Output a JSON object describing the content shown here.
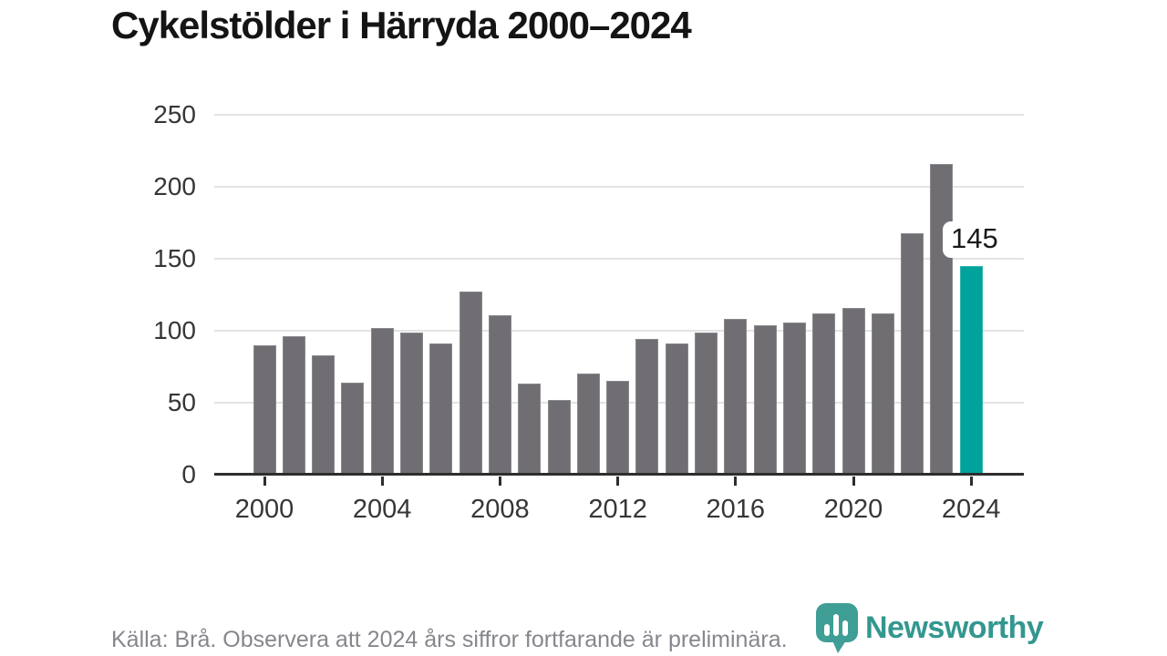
{
  "title": "Cykelstölder i Härryda 2000–2024",
  "footer": {
    "source_note": "Källa: Brå. Observera att 2024 års siffror fortfarande är preliminära."
  },
  "branding": {
    "logo_text": "Newsworthy",
    "logo_icon": "bar-chart-speech-bubble-icon"
  },
  "colors": {
    "bar": "#706e73",
    "highlight": "#00a39c",
    "grid": "#e3e3e3",
    "axis": "#2d2d2d",
    "title_text": "#141414",
    "tick_text": "#363636",
    "footer_text": "#85878c",
    "brand_teal": "#33978f"
  },
  "chart_data": {
    "type": "bar",
    "title": "Cykelstölder i Härryda 2000–2024",
    "xlabel": "",
    "ylabel": "",
    "x": [
      2000,
      2001,
      2002,
      2003,
      2004,
      2005,
      2006,
      2007,
      2008,
      2009,
      2010,
      2011,
      2012,
      2013,
      2014,
      2015,
      2016,
      2017,
      2018,
      2019,
      2020,
      2021,
      2022,
      2023,
      2024
    ],
    "values": [
      90,
      96,
      83,
      64,
      102,
      99,
      91,
      127,
      111,
      63,
      52,
      70,
      65,
      94,
      91,
      99,
      108,
      104,
      106,
      112,
      116,
      112,
      168,
      216,
      145
    ],
    "ylim": [
      0,
      250
    ],
    "yticks": [
      0,
      50,
      100,
      150,
      200,
      250
    ],
    "xticks": [
      2000,
      2004,
      2008,
      2012,
      2016,
      2020,
      2024
    ],
    "grid": true,
    "legend": "none",
    "highlight_year": 2024,
    "data_label": {
      "year": 2024,
      "text": "145"
    }
  }
}
